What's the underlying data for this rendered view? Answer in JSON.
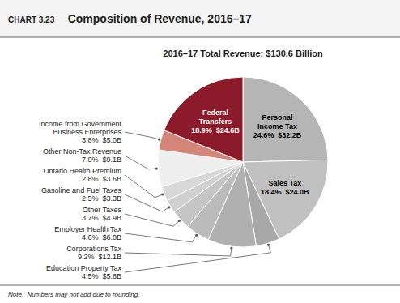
{
  "chart_data": {
    "type": "pie",
    "title": "Composition of Revenue, 2016–17",
    "subtitle": "2016–17 Total Revenue: $130.6 Billion",
    "annotations": [
      "CHART 3.23",
      "Note:  Numbers may not add due to rounding."
    ],
    "categories": [
      "Personal\nIncome Tax",
      "Sales Tax",
      "Education Property Tax",
      "Corporations Tax",
      "Employer Health Tax",
      "Other Taxes",
      "Gasoline and Fuel Taxes",
      "Ontario Health Premium",
      "Other Non-Tax Revenue",
      "Income from Government\nBusiness Enterprises",
      "Federal\nTransfers"
    ],
    "values": [
      24.6,
      18.4,
      4.5,
      9.2,
      4.6,
      3.7,
      2.5,
      2.8,
      7.0,
      3.8,
      18.9
    ],
    "value_labels": [
      "24.6%  $32.2B",
      "18.4%  $24.0B",
      "4.5%  $5.8B",
      "9.2%  $12.1B",
      "4.6%  $6.0B",
      "3.7%  $4.9B",
      "2.5%  $3.3B",
      "2.8%  $3.6B",
      "7.0%  $9.1B",
      "3.8%  $5.0B",
      "18.9%  $24.6B"
    ],
    "colors": [
      "#b5b5b5",
      "#c0c0c0",
      "#a8a8a8",
      "#b0b0b0",
      "#bbbbbb",
      "#c5c5c5",
      "#d0d0d0",
      "#d8d8d8",
      "#eeeeee",
      "#d4857a",
      "#8b1a2a"
    ],
    "data_labels": true
  }
}
